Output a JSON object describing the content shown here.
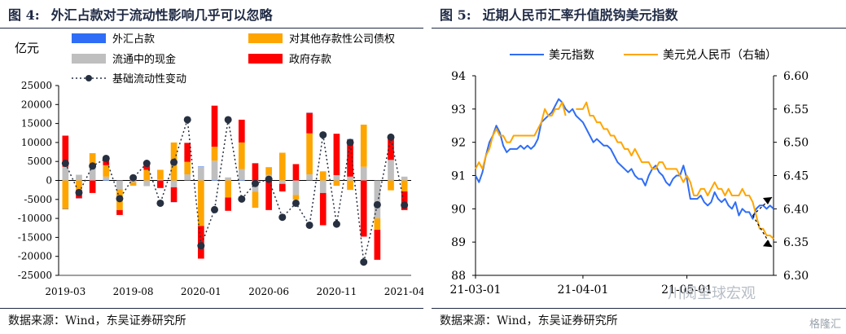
{
  "left_panel": {
    "figure_no": "图 4:",
    "title": "外汇占款对于流动性影响几乎可以忽略",
    "source": "数据来源：Wind，东吴证券研究所",
    "colors": {
      "forex": "#2f6df6",
      "corp_bonds": "#ffa500",
      "currency": "#bfbfbf",
      "fiscal": "#ff0000",
      "base_line": "#263040"
    },
    "chart_data": {
      "type": "bar",
      "title": "",
      "ylabel": "亿元",
      "xlabel": "",
      "ylim": [
        -25000,
        25000
      ],
      "yticks": [
        25000,
        20000,
        15000,
        10000,
        5000,
        0,
        -5000,
        -10000,
        -15000,
        -20000,
        -25000
      ],
      "x_tick_labels": [
        "2019-03",
        "2019-08",
        "2020-01",
        "2020-06",
        "2020-11",
        "2021-04"
      ],
      "x_tick_indices": [
        0,
        5,
        10,
        15,
        20,
        25
      ],
      "categories": [
        "2019-03",
        "2019-04",
        "2019-05",
        "2019-06",
        "2019-07",
        "2019-08",
        "2019-09",
        "2019-10",
        "2019-11",
        "2019-12",
        "2020-01",
        "2020-02",
        "2020-03",
        "2020-04",
        "2020-05",
        "2020-06",
        "2020-07",
        "2020-08",
        "2020-09",
        "2020-10",
        "2020-11",
        "2020-12",
        "2021-01",
        "2021-02",
        "2021-03",
        "2021-04"
      ],
      "legend_placement": "top",
      "series": [
        {
          "name": "外汇占款",
          "kind": "bar",
          "values": [
            -100,
            -50,
            50,
            -100,
            0,
            -50,
            0,
            0,
            -50,
            0,
            100,
            -100,
            0,
            -100,
            50,
            0,
            0,
            0,
            50,
            0,
            0,
            100,
            0,
            0,
            0,
            0
          ]
        },
        {
          "name": "对其他存款性公司债权",
          "kind": "bar",
          "values": [
            -7500,
            -2500,
            3500,
            3000,
            -5500,
            -800,
            2800,
            2500,
            10000,
            3300,
            -12000,
            3700,
            -4500,
            7000,
            -4200,
            2000,
            7300,
            -1300,
            10800,
            2400,
            -1400,
            -2500,
            11100,
            -3000,
            -2600,
            -2900
          ]
        },
        {
          "name": "流通中的现金",
          "kind": "bar",
          "values": [
            3600,
            1500,
            3600,
            1000,
            -2300,
            -500,
            -1500,
            300,
            -1800,
            1600,
            3600,
            5200,
            800,
            3000,
            -3000,
            1500,
            -900,
            -3800,
            1600,
            -3300,
            1400,
            1000,
            3600,
            -10000,
            5400,
            1000
          ]
        },
        {
          "name": "政府存款",
          "kind": "bar",
          "values": [
            8200,
            -2200,
            -3300,
            1700,
            -1300,
            900,
            1500,
            -2000,
            -3900,
            5000,
            -8600,
            10800,
            -3500,
            6000,
            4500,
            -7800,
            -2000,
            4300,
            5400,
            -8500,
            10900,
            9800,
            -14800,
            -7900,
            5800,
            -4900
          ]
        },
        {
          "name": "基础流动性变动",
          "kind": "line",
          "values": [
            4500,
            -3200,
            3800,
            5800,
            -4800,
            700,
            4500,
            -6000,
            4800,
            16000,
            -17200,
            -7700,
            16000,
            -4900,
            -800,
            300,
            -9700,
            -6000,
            -11800,
            12000,
            -11500,
            10000,
            -21500,
            -6400,
            11400,
            -6500
          ]
        }
      ]
    }
  },
  "right_panel": {
    "figure_no": "图 5:",
    "title": "近期人民币汇率升值脱钩美元指数",
    "source": "数据来源：Wind，东吴证券研究所",
    "colors": {
      "usd_index": "#2f6df6",
      "usdcny": "#ffa500"
    },
    "watermark_main": "川阅全球宏观",
    "watermark_corner": "格隆汇",
    "chart_data": {
      "type": "line",
      "title": "",
      "xlabel": "",
      "ylabel_left": "",
      "ylabel_right": "",
      "ylim_left": [
        88,
        94
      ],
      "yticks_left": [
        88,
        89,
        90,
        91,
        92,
        93,
        94
      ],
      "ylim_right": [
        6.3,
        6.6
      ],
      "yticks_right": [
        "6.30",
        "6.35",
        "6.40",
        "6.45",
        "6.50",
        "6.55",
        "6.60"
      ],
      "x_tick_labels": [
        "21-03-01",
        "21-04-01",
        "21-05-01"
      ],
      "x_tick_indices": [
        0,
        31,
        61
      ],
      "x_range": [
        0,
        86
      ],
      "legend_placement": "top",
      "series": [
        {
          "name": "美元指数",
          "axis": "left",
          "x": [
            0,
            1,
            2,
            3,
            4,
            5,
            6,
            7,
            8,
            9,
            10,
            11,
            12,
            13,
            14,
            15,
            16,
            17,
            18,
            19,
            20,
            21,
            22,
            23,
            24,
            25,
            26,
            27,
            28,
            29,
            30,
            31,
            32,
            33,
            34,
            35,
            36,
            37,
            38,
            39,
            40,
            41,
            42,
            43,
            44,
            45,
            46,
            47,
            48,
            49,
            50,
            51,
            52,
            53,
            54,
            55,
            56,
            57,
            58,
            59,
            60,
            61,
            62,
            63,
            64,
            65,
            66,
            67,
            68,
            69,
            70,
            71,
            72,
            73,
            74,
            75,
            76,
            77,
            78,
            79,
            80,
            81,
            82,
            83,
            84,
            85,
            86
          ],
          "values": [
            91.0,
            90.8,
            91.1,
            91.6,
            92.0,
            92.2,
            92.5,
            92.3,
            91.9,
            91.7,
            91.8,
            91.8,
            91.8,
            91.9,
            91.8,
            91.9,
            91.8,
            91.9,
            92.1,
            92.6,
            92.7,
            92.8,
            92.9,
            93.1,
            93.3,
            93.2,
            93.0,
            92.9,
            93.0,
            92.8,
            92.7,
            92.6,
            92.4,
            92.2,
            92.0,
            92.1,
            92.0,
            91.9,
            91.9,
            91.8,
            91.6,
            91.4,
            91.3,
            91.2,
            91.1,
            91.2,
            91.0,
            90.9,
            90.9,
            90.7,
            91.0,
            91.2,
            91.3,
            91.1,
            91.0,
            90.8,
            90.7,
            90.9,
            91.0,
            91.0,
            91.3,
            90.9,
            90.3,
            90.3,
            90.3,
            90.4,
            90.2,
            90.1,
            90.2,
            90.5,
            90.3,
            90.2,
            90.3,
            90.1,
            90.0,
            90.2,
            89.8,
            90.0,
            89.9,
            89.9,
            89.7,
            90.0,
            90.1,
            90.1,
            90.0,
            90.1,
            90.0
          ]
        },
        {
          "name": "美元兑人民币（右轴）",
          "axis": "right",
          "x": [
            0,
            1,
            2,
            3,
            4,
            5,
            6,
            7,
            8,
            9,
            10,
            11,
            12,
            13,
            14,
            15,
            16,
            17,
            18,
            19,
            20,
            21,
            22,
            23,
            24,
            25,
            26,
            29,
            30,
            31,
            32,
            33,
            34,
            35,
            36,
            37,
            38,
            39,
            40,
            41,
            42,
            43,
            44,
            45,
            46,
            47,
            48,
            49,
            50,
            51,
            52,
            53,
            54,
            55,
            56,
            57,
            58,
            59,
            60,
            61,
            62,
            63,
            64,
            65,
            66,
            67,
            68,
            69,
            70,
            71,
            72,
            73,
            74,
            75,
            76,
            77,
            78,
            79,
            80,
            81,
            82,
            83,
            84,
            85,
            86
          ],
          "values": [
            6.46,
            6.47,
            6.46,
            6.48,
            6.49,
            6.51,
            6.52,
            6.51,
            6.51,
            6.5,
            6.5,
            6.51,
            6.51,
            6.51,
            6.51,
            6.51,
            6.51,
            6.51,
            6.52,
            6.53,
            6.55,
            6.54,
            6.54,
            6.55,
            6.55,
            6.56,
            6.54,
            6.55,
            6.55,
            6.55,
            6.56,
            6.54,
            6.54,
            6.53,
            6.53,
            6.52,
            6.52,
            6.51,
            6.51,
            6.5,
            6.5,
            6.49,
            6.49,
            6.48,
            6.49,
            6.48,
            6.47,
            6.47,
            6.47,
            6.46,
            6.46,
            6.47,
            6.47,
            6.46,
            6.46,
            6.46,
            6.46,
            6.45,
            6.44,
            6.45,
            6.44,
            6.42,
            6.42,
            6.43,
            6.43,
            6.42,
            6.43,
            6.44,
            6.43,
            6.43,
            6.42,
            6.43,
            6.42,
            6.42,
            6.42,
            6.43,
            6.42,
            6.42,
            6.41,
            6.39,
            6.37,
            6.37,
            6.36,
            6.36,
            6.355
          ]
        }
      ]
    }
  }
}
